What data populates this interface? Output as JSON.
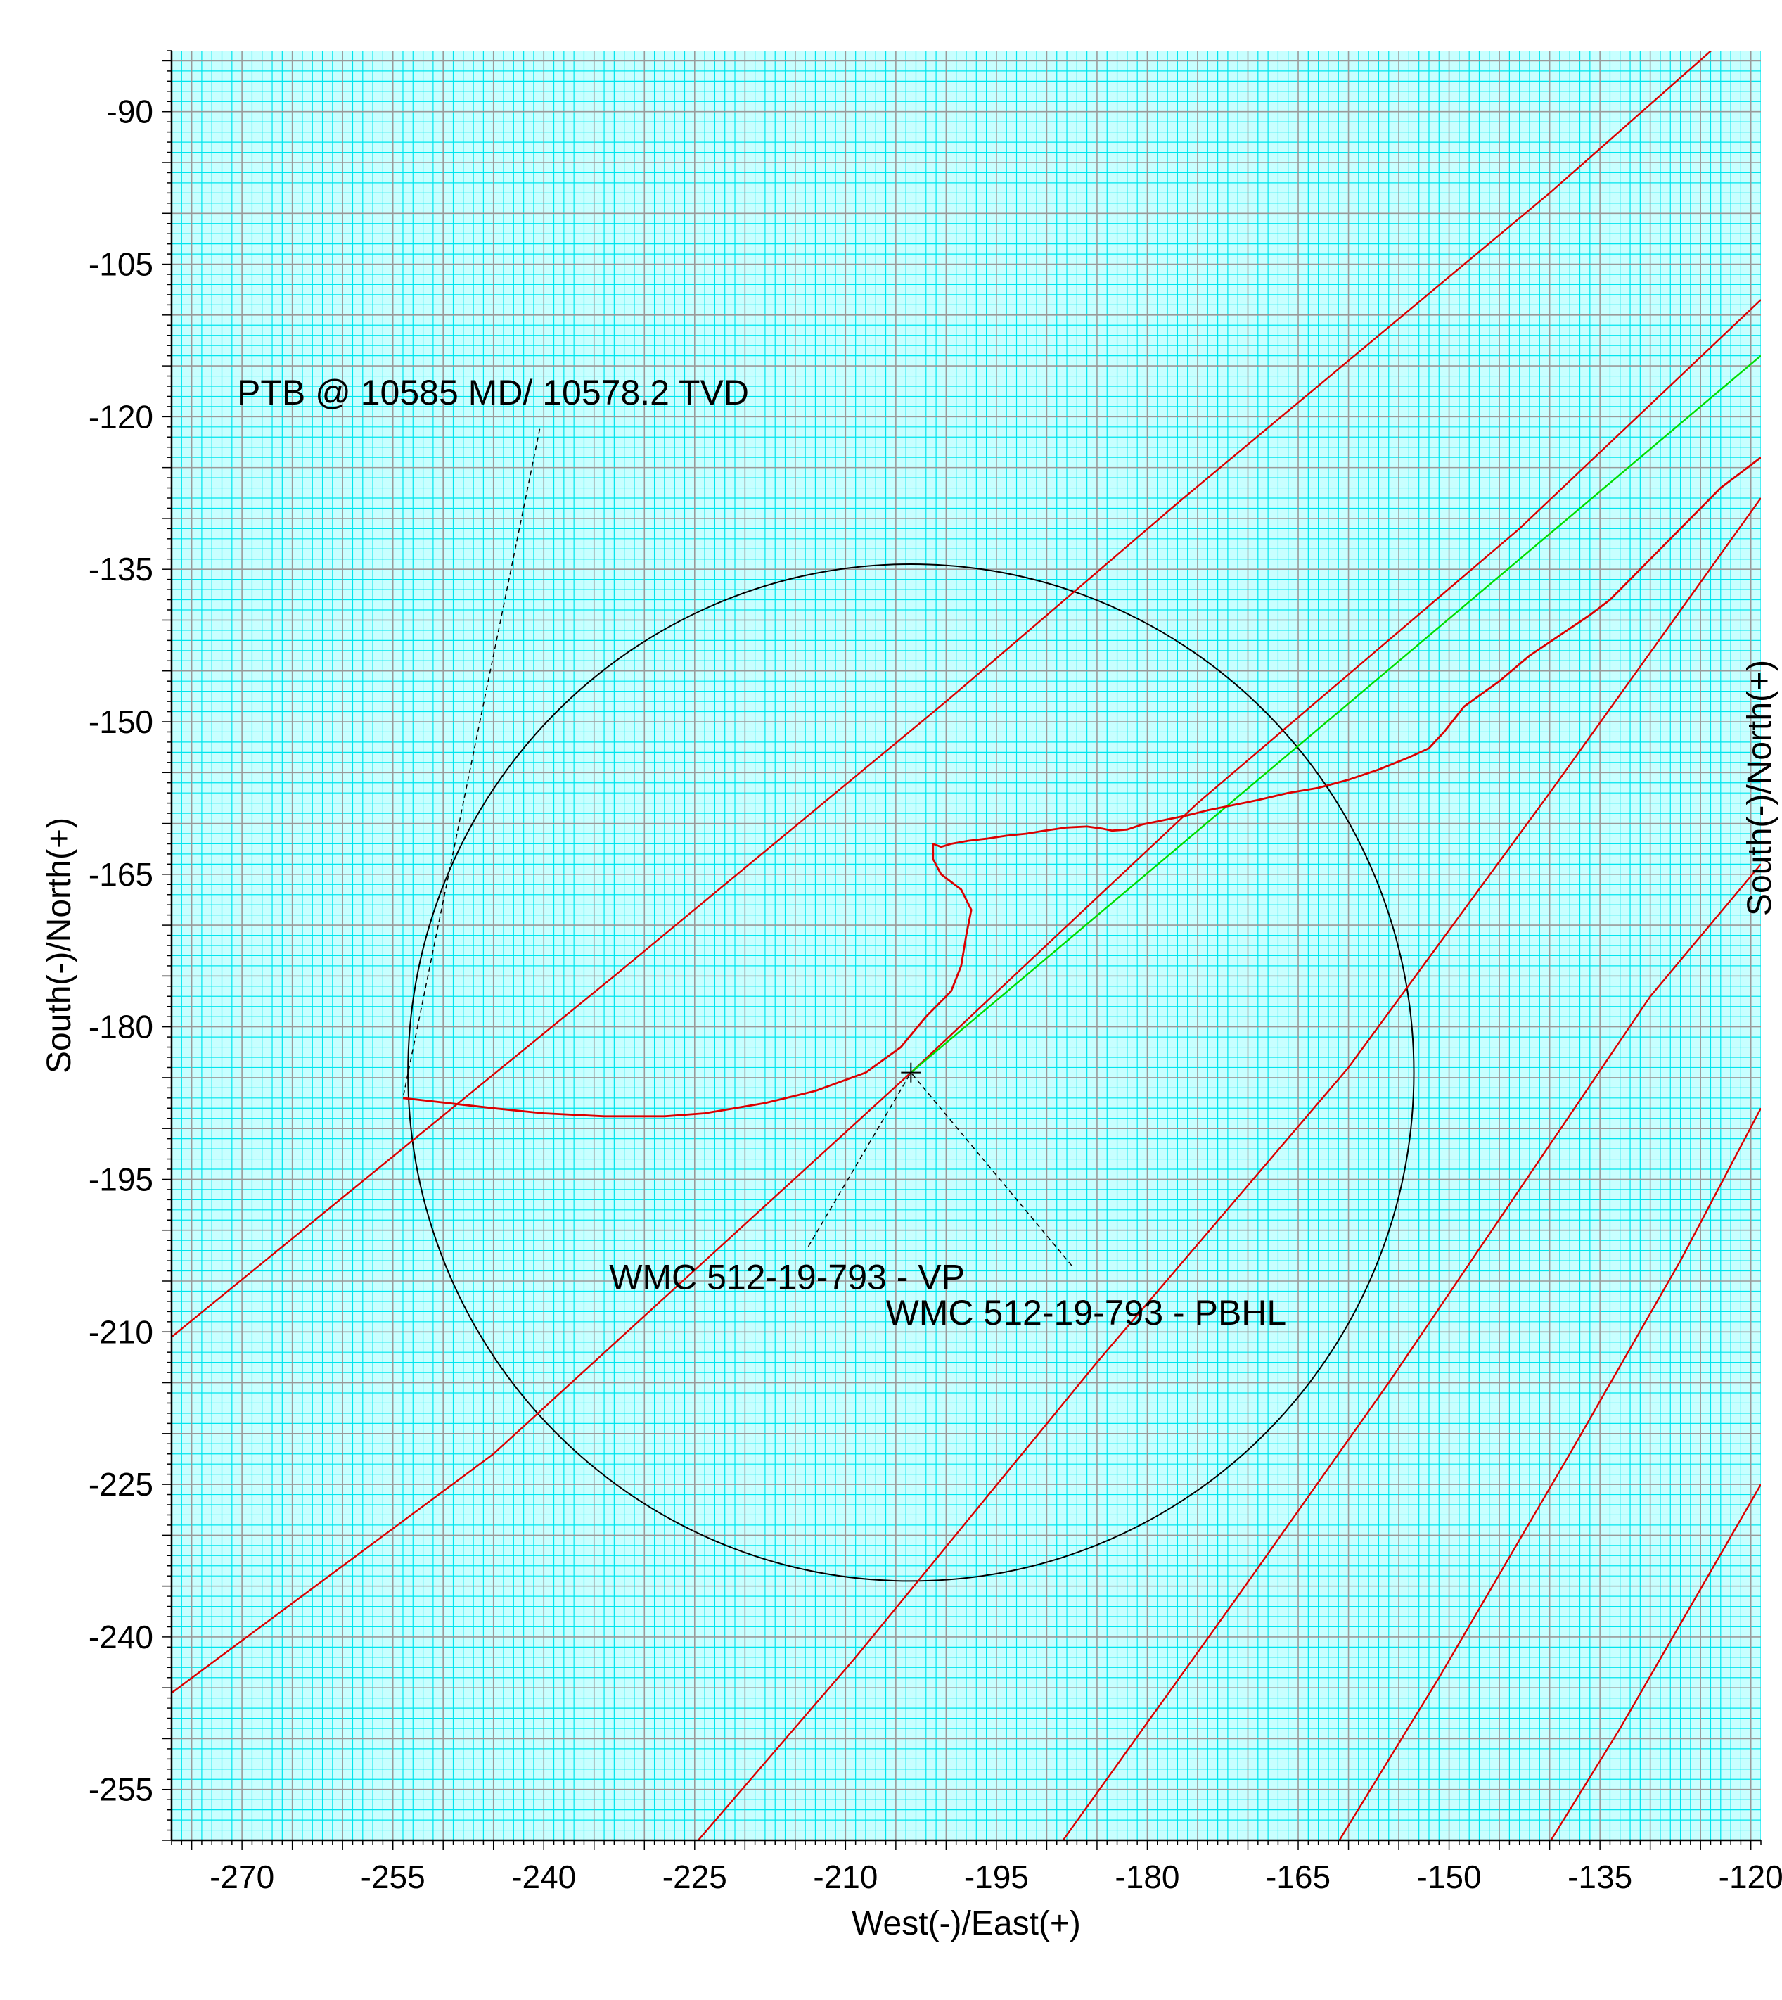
{
  "chart_data": {
    "type": "line",
    "title": "",
    "xlabel": "West(-)/East(+)",
    "ylabel": "South(-)/North(+)",
    "ylabel_right": "South(-)/North(+)",
    "xlim": [
      -277,
      -119
    ],
    "ylim": [
      -260,
      -84
    ],
    "x_ticks": [
      -270,
      -255,
      -240,
      -225,
      -210,
      -195,
      -180,
      -165,
      -150,
      -135,
      -120
    ],
    "y_ticks": [
      -90,
      -105,
      -120,
      -135,
      -150,
      -165,
      -180,
      -195,
      -210,
      -225,
      -240,
      -255
    ],
    "grid": {
      "minor_step": 1,
      "minor_color": "#00e5ee",
      "major_step": 5,
      "major_color": "#9a9a9a",
      "background": "#c8ffff"
    },
    "circle": {
      "center": [
        -203.5,
        -184.5
      ],
      "radius": 50,
      "color": "#000000"
    },
    "offset_wells": [
      {
        "color": "#dd0000",
        "points": [
          [
            -277,
            -210.5
          ],
          [
            -233,
            -175
          ],
          [
            -200,
            -148
          ],
          [
            -177,
            -128.5
          ],
          [
            -140,
            -98
          ],
          [
            -120.5,
            -81
          ]
        ]
      },
      {
        "color": "#dd0000",
        "points": [
          [
            -277,
            -245.5
          ],
          [
            -245,
            -222
          ],
          [
            -203.5,
            -184.5
          ],
          [
            -175,
            -158
          ],
          [
            -143,
            -131
          ],
          [
            -119,
            -108.5
          ]
        ]
      },
      {
        "color": "#dd0000",
        "points": [
          [
            -229,
            -265
          ],
          [
            -209,
            -242
          ],
          [
            -185,
            -213
          ],
          [
            -160,
            -184
          ],
          [
            -140,
            -157
          ],
          [
            -119,
            -128
          ]
        ]
      },
      {
        "color": "#dd0000",
        "points": [
          [
            -192,
            -265
          ],
          [
            -171,
            -236
          ],
          [
            -156,
            -215
          ],
          [
            -143,
            -196
          ],
          [
            -130,
            -177
          ],
          [
            -119,
            -164
          ]
        ]
      },
      {
        "color": "#dd0000",
        "points": [
          [
            -164,
            -265
          ],
          [
            -151,
            -244
          ],
          [
            -138,
            -222
          ],
          [
            -127,
            -203
          ],
          [
            -119,
            -188
          ]
        ]
      },
      {
        "color": "#dd0000",
        "points": [
          [
            -143,
            -265
          ],
          [
            -133,
            -249
          ],
          [
            -119,
            -225
          ]
        ]
      }
    ],
    "plan_line": {
      "name": "WMC 512-19-793 - PBHL",
      "color": "#00dd00",
      "points": [
        [
          -203.5,
          -184.5
        ],
        [
          -119,
          -114
        ]
      ]
    },
    "actual_survey": {
      "color": "#dd0000",
      "points": [
        [
          -254,
          -187
        ],
        [
          -245,
          -188
        ],
        [
          -240,
          -188.5
        ],
        [
          -234,
          -188.8
        ],
        [
          -228,
          -188.8
        ],
        [
          -224,
          -188.5
        ],
        [
          -218,
          -187.5
        ],
        [
          -213,
          -186.3
        ],
        [
          -208,
          -184.5
        ],
        [
          -204.5,
          -182
        ],
        [
          -202,
          -179
        ],
        [
          -199.5,
          -176.5
        ],
        [
          -198.5,
          -174
        ],
        [
          -198,
          -171
        ],
        [
          -197.5,
          -168.5
        ],
        [
          -198.5,
          -166.5
        ],
        [
          -200.5,
          -165
        ],
        [
          -201.3,
          -163.5
        ],
        [
          -201.3,
          -162
        ],
        [
          -200.5,
          -162.3
        ],
        [
          -199.5,
          -162
        ],
        [
          -197.8,
          -161.7
        ],
        [
          -196,
          -161.5
        ],
        [
          -194,
          -161.2
        ],
        [
          -192,
          -161
        ],
        [
          -190.2,
          -160.7
        ],
        [
          -188,
          -160.4
        ],
        [
          -186,
          -160.3
        ],
        [
          -184.5,
          -160.5
        ],
        [
          -183.5,
          -160.7
        ],
        [
          -182,
          -160.6
        ],
        [
          -180.5,
          -160.1
        ],
        [
          -178,
          -159.6
        ],
        [
          -176,
          -159.2
        ],
        [
          -174,
          -158.7
        ],
        [
          -172,
          -158.3
        ],
        [
          -169,
          -157.7
        ],
        [
          -166,
          -157
        ],
        [
          -163,
          -156.5
        ],
        [
          -160,
          -155.7
        ],
        [
          -157,
          -154.7
        ],
        [
          -154,
          -153.5
        ],
        [
          -152,
          -152.6
        ],
        [
          -150.5,
          -151
        ],
        [
          -148.5,
          -148.5
        ],
        [
          -145,
          -146
        ],
        [
          -142,
          -143.5
        ],
        [
          -139,
          -141.5
        ],
        [
          -136,
          -139.5
        ],
        [
          -134,
          -138
        ],
        [
          -132,
          -136
        ],
        [
          -129,
          -133
        ],
        [
          -126,
          -130
        ],
        [
          -123,
          -127
        ],
        [
          -121,
          -125.5
        ],
        [
          -119,
          -124
        ]
      ]
    },
    "annotations": [
      {
        "text": "PTB @ 10585 MD/ 10578.2 TVD",
        "label_at": [
          -270.5,
          -118.8
        ],
        "pointer": [
          [
            -240.4,
            -121.2
          ],
          [
            -254,
            -187
          ]
        ]
      },
      {
        "text": "WMC 512-19-793 - VP",
        "label_at": [
          -233.5,
          -205.8
        ],
        "pointer": [
          [
            -213.7,
            -201.6
          ],
          [
            -203.5,
            -184.5
          ]
        ]
      },
      {
        "text": "WMC 512-19-793 - PBHL",
        "label_at": [
          -206,
          -209.3
        ],
        "pointer": [
          [
            -187.5,
            -203.5
          ],
          [
            -203.5,
            -184.5
          ]
        ]
      }
    ],
    "marker": {
      "at": [
        -203.5,
        -184.5
      ],
      "symbol": "+"
    }
  }
}
